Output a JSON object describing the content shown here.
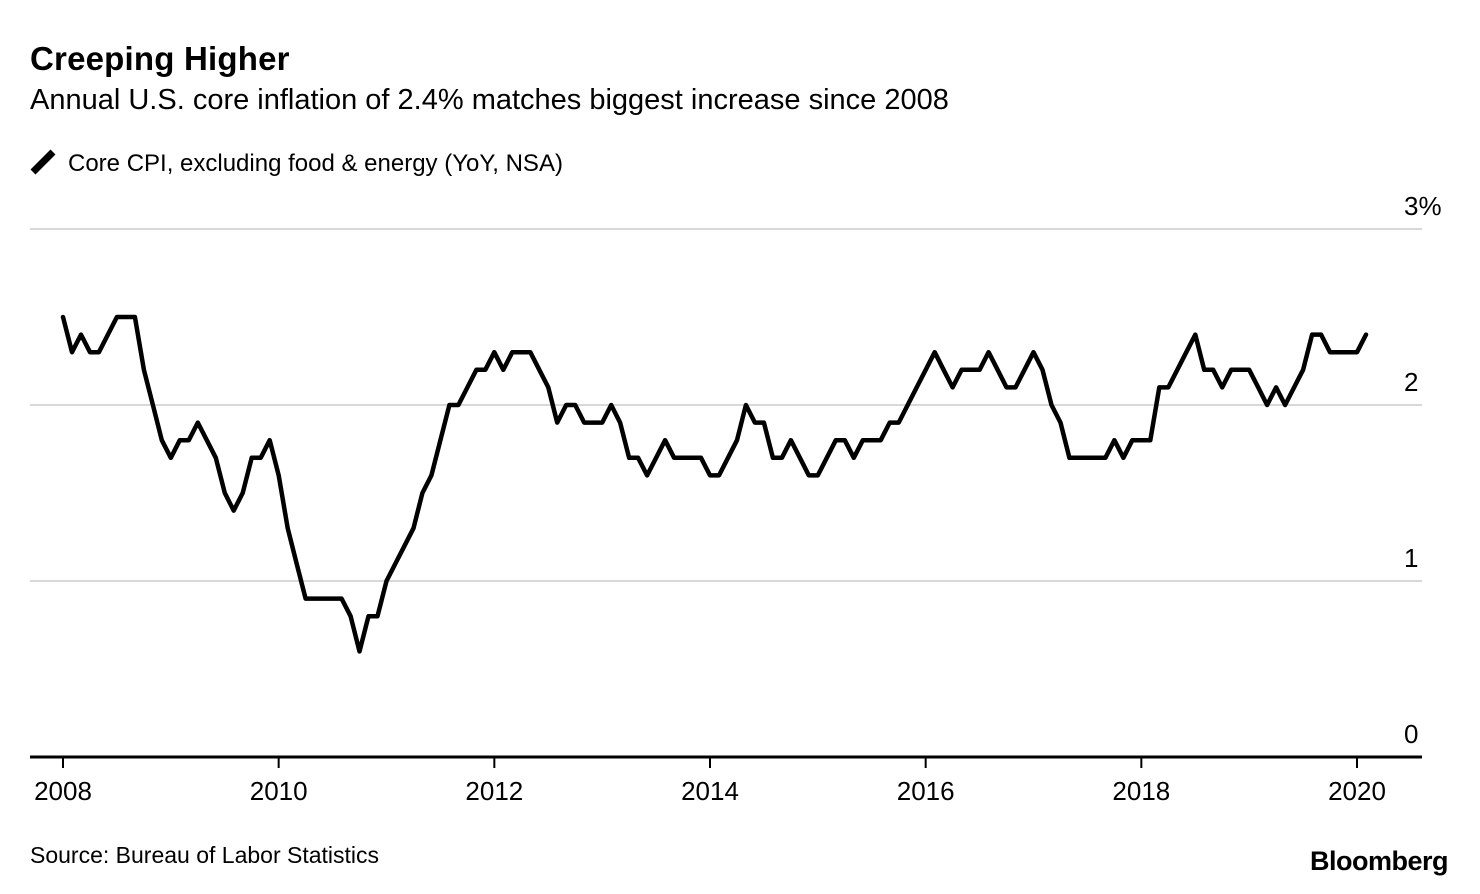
{
  "header": {
    "title": "Creeping Higher",
    "subtitle": "Annual U.S. core inflation of 2.4% matches biggest increase since 2008"
  },
  "legend": {
    "label": "Core CPI, excluding food & energy (YoY, NSA)",
    "icon": "diagonal-line-mark",
    "color": "#000000"
  },
  "footer": {
    "source": "Source: Bureau of Labor Statistics",
    "logo": "Bloomberg"
  },
  "chart_data": {
    "type": "line",
    "title": "Creeping Higher",
    "subtitle": "Annual U.S. core inflation of 2.4% matches biggest increase since 2008",
    "series_name": "Core CPI, excluding food & energy (YoY, NSA)",
    "unit": "%",
    "frequency": "monthly",
    "start_year": 2008,
    "start_month": 1,
    "end_year": 2020,
    "end_month": 2,
    "values": [
      2.5,
      2.3,
      2.4,
      2.3,
      2.3,
      2.4,
      2.5,
      2.5,
      2.5,
      2.2,
      2.0,
      1.8,
      1.7,
      1.8,
      1.8,
      1.9,
      1.8,
      1.7,
      1.5,
      1.4,
      1.5,
      1.7,
      1.7,
      1.8,
      1.6,
      1.3,
      1.1,
      0.9,
      0.9,
      0.9,
      0.9,
      0.9,
      0.8,
      0.6,
      0.8,
      0.8,
      1.0,
      1.1,
      1.2,
      1.3,
      1.5,
      1.6,
      1.8,
      2.0,
      2.0,
      2.1,
      2.2,
      2.2,
      2.3,
      2.2,
      2.3,
      2.3,
      2.3,
      2.2,
      2.1,
      1.9,
      2.0,
      2.0,
      1.9,
      1.9,
      1.9,
      2.0,
      1.9,
      1.7,
      1.7,
      1.6,
      1.7,
      1.8,
      1.7,
      1.7,
      1.7,
      1.7,
      1.6,
      1.6,
      1.7,
      1.8,
      2.0,
      1.9,
      1.9,
      1.7,
      1.7,
      1.8,
      1.7,
      1.6,
      1.6,
      1.7,
      1.8,
      1.8,
      1.7,
      1.8,
      1.8,
      1.8,
      1.9,
      1.9,
      2.0,
      2.1,
      2.2,
      2.3,
      2.2,
      2.1,
      2.2,
      2.2,
      2.2,
      2.3,
      2.2,
      2.1,
      2.1,
      2.2,
      2.3,
      2.2,
      2.0,
      1.9,
      1.7,
      1.7,
      1.7,
      1.7,
      1.7,
      1.8,
      1.7,
      1.8,
      1.8,
      1.8,
      2.1,
      2.1,
      2.2,
      2.3,
      2.4,
      2.2,
      2.2,
      2.1,
      2.2,
      2.2,
      2.2,
      2.1,
      2.0,
      2.1,
      2.0,
      2.1,
      2.2,
      2.4,
      2.4,
      2.3,
      2.3,
      2.3,
      2.3,
      2.4
    ],
    "y_ticks": [
      {
        "value": 3,
        "label": "3%"
      },
      {
        "value": 2,
        "label": "2"
      },
      {
        "value": 1,
        "label": "1"
      },
      {
        "value": 0,
        "label": "0"
      }
    ],
    "x_ticks": [
      2008,
      2010,
      2012,
      2014,
      2016,
      2018,
      2020
    ],
    "ylim": [
      0,
      3
    ],
    "grid": true,
    "legend_position": "top-left",
    "line_color": "#000000",
    "grid_color": "#d8d8d8",
    "axis_color": "#000000"
  }
}
